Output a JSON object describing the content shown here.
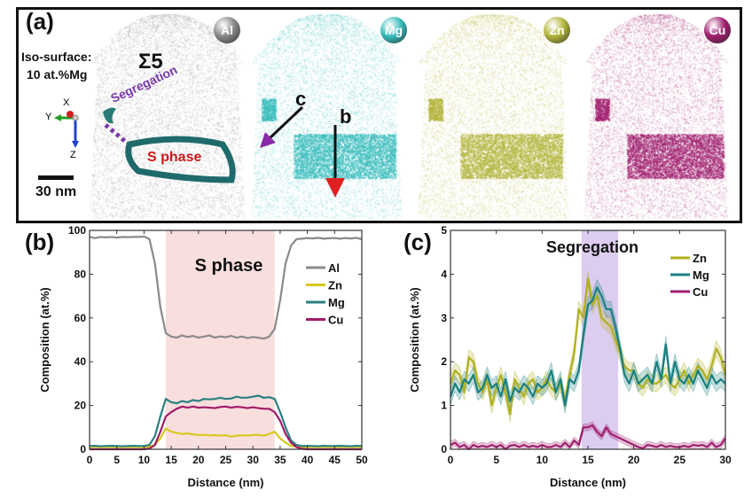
{
  "panel_a": {
    "label": "(a)",
    "iso_line1": "Iso-surface:",
    "iso_line2": "10 at.%Mg",
    "sigma": "Σ5",
    "segregation": "Segregation",
    "s_phase": "S phase",
    "scale": "30 nm",
    "axes": {
      "x": "X",
      "y": "Y",
      "z": "Z"
    },
    "arrow_c": "c",
    "arrow_b": "b",
    "elements": [
      {
        "name": "Al",
        "color": "#888888"
      },
      {
        "name": "Mg",
        "color": "#38bcbc"
      },
      {
        "name": "Zn",
        "color": "#b4b43c"
      },
      {
        "name": "Cu",
        "color": "#a0206e"
      }
    ]
  },
  "chart_data": [
    {
      "type": "line",
      "panel_label": "(b)",
      "annotation": "S phase",
      "xlabel": "Distance (nm)",
      "ylabel": "Composition (at.%)",
      "xlim": [
        0,
        50
      ],
      "ylim": [
        0,
        100
      ],
      "xticks": [
        0,
        5,
        10,
        15,
        20,
        25,
        30,
        35,
        40,
        45,
        50
      ],
      "yticks": [
        0,
        20,
        40,
        60,
        80,
        100
      ],
      "highlight": {
        "from": 14,
        "to": 34,
        "color": "#f9dede"
      },
      "legend": "top-right",
      "x": [
        0,
        1,
        2,
        3,
        4,
        5,
        6,
        7,
        8,
        9,
        10,
        11,
        12,
        13,
        14,
        15,
        16,
        17,
        18,
        19,
        20,
        21,
        22,
        23,
        24,
        25,
        26,
        27,
        28,
        29,
        30,
        31,
        32,
        33,
        34,
        35,
        36,
        37,
        38,
        39,
        40,
        41,
        42,
        43,
        44,
        45,
        46,
        47,
        48,
        49,
        50
      ],
      "series": [
        {
          "name": "Al",
          "color": "#8a8a8a",
          "values": [
            97,
            96.5,
            97,
            96.8,
            97,
            96.7,
            97,
            96.9,
            97,
            97,
            97.2,
            96,
            85,
            65,
            53,
            51.5,
            51,
            52,
            51.3,
            51.8,
            51,
            51.5,
            52,
            51,
            51.6,
            51.2,
            51.8,
            51,
            51.5,
            50.8,
            51.3,
            51,
            50.5,
            51.5,
            55,
            68,
            85,
            93,
            96,
            96.2,
            96.5,
            96.3,
            96.6,
            96.2,
            96.4,
            96.5,
            96.2,
            96.5,
            96.3,
            96.6,
            96
          ]
        },
        {
          "name": "Zn",
          "color": "#d6c81e",
          "values": [
            1,
            1,
            1,
            1,
            1,
            1,
            1,
            1,
            1,
            1,
            1,
            1.2,
            2,
            5,
            9.5,
            8,
            7.5,
            7,
            7.2,
            6.8,
            6.5,
            6.6,
            6.3,
            6.5,
            6.2,
            6.4,
            5.8,
            6.2,
            6.4,
            6.3,
            6.5,
            6.6,
            6.2,
            7,
            8,
            5,
            3,
            1.5,
            1.2,
            1,
            1,
            1,
            1,
            1,
            1,
            1,
            1,
            1,
            1,
            1,
            1
          ]
        },
        {
          "name": "Mg",
          "color": "#2a8080",
          "values": [
            1.5,
            1.6,
            1.4,
            1.5,
            1.6,
            1.5,
            1.4,
            1.5,
            1.6,
            1.5,
            1.5,
            2,
            6,
            15,
            23,
            21.5,
            21,
            22,
            21.5,
            22.5,
            22,
            23,
            22.8,
            23,
            23.5,
            23,
            23.2,
            24,
            23.5,
            23.6,
            24,
            24.5,
            23.5,
            23.8,
            23,
            17,
            10,
            4,
            2,
            1.5,
            1.6,
            1.5,
            1.4,
            1.6,
            1.5,
            1.5,
            1.6,
            1.5,
            1.4,
            1.6,
            1.5
          ]
        },
        {
          "name": "Cu",
          "color": "#a01a68",
          "values": [
            0,
            0,
            0,
            0,
            0,
            0,
            0,
            0,
            0,
            0,
            0,
            0.3,
            2,
            8,
            15,
            17,
            18.5,
            19.5,
            19,
            19.5,
            19,
            19.2,
            19,
            18.8,
            19.3,
            19.5,
            19,
            19.4,
            19.2,
            18.8,
            19.2,
            18.8,
            18.5,
            18.5,
            17,
            13,
            7,
            3,
            1,
            0.2,
            0,
            0,
            0,
            0,
            0,
            0,
            0,
            0,
            0,
            0,
            0
          ]
        }
      ]
    },
    {
      "type": "line",
      "panel_label": "(c)",
      "annotation": "Segregation",
      "xlabel": "Distance (nm)",
      "ylabel": "Composition (at.%)",
      "xlim": [
        0,
        30
      ],
      "ylim": [
        0,
        5
      ],
      "xticks": [
        0,
        5,
        10,
        15,
        20,
        25,
        30
      ],
      "yticks": [
        0,
        1,
        2,
        3,
        4,
        5
      ],
      "highlight": {
        "from": 14.3,
        "to": 18.3,
        "color": "#dccdf0"
      },
      "legend": "top-right",
      "x": [
        0,
        0.5,
        1,
        1.5,
        2,
        2.5,
        3,
        3.5,
        4,
        4.5,
        5,
        5.5,
        6,
        6.5,
        7,
        7.5,
        8,
        8.5,
        9,
        9.5,
        10,
        10.5,
        11,
        11.5,
        12,
        12.5,
        13,
        13.5,
        14,
        14.5,
        15,
        15.5,
        16,
        16.5,
        17,
        17.5,
        18,
        18.5,
        19,
        19.5,
        20,
        20.5,
        21,
        21.5,
        22,
        22.5,
        23,
        23.5,
        24,
        24.5,
        25,
        25.5,
        26,
        26.5,
        27,
        27.5,
        28,
        28.5,
        29,
        29.5,
        30
      ],
      "series": [
        {
          "name": "Zn",
          "color": "#b0b020",
          "band": 0.18,
          "values": [
            1.5,
            1.8,
            1.7,
            1.3,
            2.1,
            2.0,
            1.5,
            1.3,
            1.6,
            1.0,
            1.4,
            1.7,
            1.3,
            0.8,
            1.6,
            1.4,
            1.2,
            1.5,
            1.6,
            1.3,
            1.4,
            1.6,
            1.4,
            1.3,
            1.5,
            1.1,
            1.7,
            2.2,
            3.2,
            3.0,
            3.9,
            3.3,
            3.5,
            3.0,
            2.9,
            2.8,
            2.5,
            2.2,
            1.9,
            1.8,
            1.8,
            1.5,
            1.4,
            1.6,
            1.5,
            1.5,
            1.6,
            1.7,
            1.5,
            1.4,
            1.6,
            1.8,
            1.5,
            1.7,
            1.9,
            1.8,
            1.6,
            1.9,
            2.3,
            2.1,
            1.7
          ]
        },
        {
          "name": "Mg",
          "color": "#1a8080",
          "band": 0.18,
          "values": [
            1.2,
            1.5,
            1.3,
            1.6,
            1.5,
            1.7,
            1.3,
            1.4,
            1.7,
            1.4,
            1.5,
            1.2,
            1.6,
            1.1,
            1.4,
            1.3,
            1.5,
            1.4,
            1.2,
            1.5,
            1.4,
            1.5,
            1.8,
            1.3,
            1.6,
            1.0,
            1.6,
            1.5,
            1.8,
            2.6,
            3.3,
            3.4,
            3.7,
            3.5,
            3.2,
            3.2,
            2.8,
            2.3,
            1.7,
            1.5,
            1.8,
            1.5,
            1.6,
            1.7,
            1.5,
            2.0,
            1.6,
            2.4,
            1.5,
            2.0,
            1.6,
            1.5,
            1.7,
            1.5,
            1.8,
            1.6,
            1.4,
            1.7,
            1.5,
            1.6,
            1.5
          ]
        },
        {
          "name": "Cu",
          "color": "#a0206e",
          "band": 0.08,
          "values": [
            0.1,
            0.15,
            0.05,
            0.1,
            0,
            0.1,
            0.05,
            0.08,
            0.05,
            0.1,
            0.05,
            0.1,
            0,
            0.08,
            0.1,
            0.05,
            0.1,
            0.05,
            0.08,
            0.05,
            0.1,
            0.05,
            0.05,
            0.1,
            0.05,
            0.15,
            0.05,
            0.2,
            0.1,
            0.5,
            0.5,
            0.55,
            0.4,
            0.3,
            0.5,
            0.35,
            0.3,
            0.25,
            0.2,
            0.15,
            0.1,
            0.05,
            0.02,
            0.1,
            0.08,
            0.05,
            0.1,
            0.05,
            0.08,
            0.05,
            0.05,
            0.08,
            0.05,
            0.1,
            0.08,
            0.1,
            0.05,
            0.15,
            0.05,
            0.1,
            0.25
          ]
        }
      ]
    }
  ]
}
